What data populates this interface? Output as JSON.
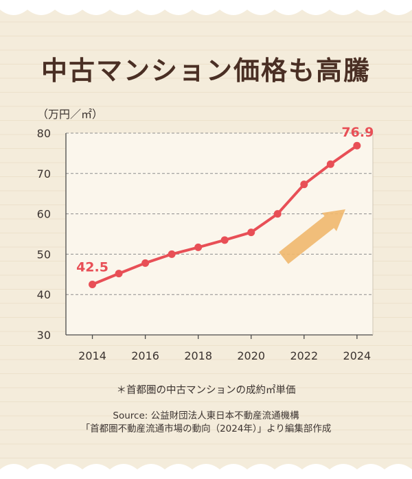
{
  "title": "中古マンション価格も高騰",
  "unit": "（万円／㎡）",
  "note": "＊首都圏の中古マンションの成約㎡単価",
  "source": "Source: 公益財団法人東日本不動産流通機構",
  "source_ref": "「首都圏不動産流通市場の動向（2024年）」より編集部作成",
  "colors": {
    "background": "#f4ecdb",
    "plot_background": "#fbf6ec",
    "line": "#e84f56",
    "arrow": "#f0b86e",
    "title": "#4a2f24"
  },
  "chart_data": {
    "type": "line",
    "x": [
      2014,
      2015,
      2016,
      2017,
      2018,
      2019,
      2020,
      2021,
      2022,
      2023,
      2024
    ],
    "series": [
      {
        "values": [
          42.5,
          45.2,
          47.8,
          50.0,
          51.7,
          53.5,
          55.4,
          60.0,
          67.3,
          72.3,
          76.9
        ]
      }
    ],
    "y_ticks": [
      "30",
      "40",
      "50",
      "60",
      "70",
      "80"
    ],
    "x_ticks": [
      "2014",
      "2016",
      "2018",
      "2020",
      "2022",
      "2024"
    ],
    "data_labels": [
      {
        "x": 2014,
        "text": "42.5"
      },
      {
        "x": 2024,
        "text": "76.9"
      }
    ],
    "ylim": [
      30,
      80
    ],
    "xlim": [
      2013,
      2024.6
    ],
    "grid": "horizontal dashed",
    "decoration": "upward arrow"
  }
}
